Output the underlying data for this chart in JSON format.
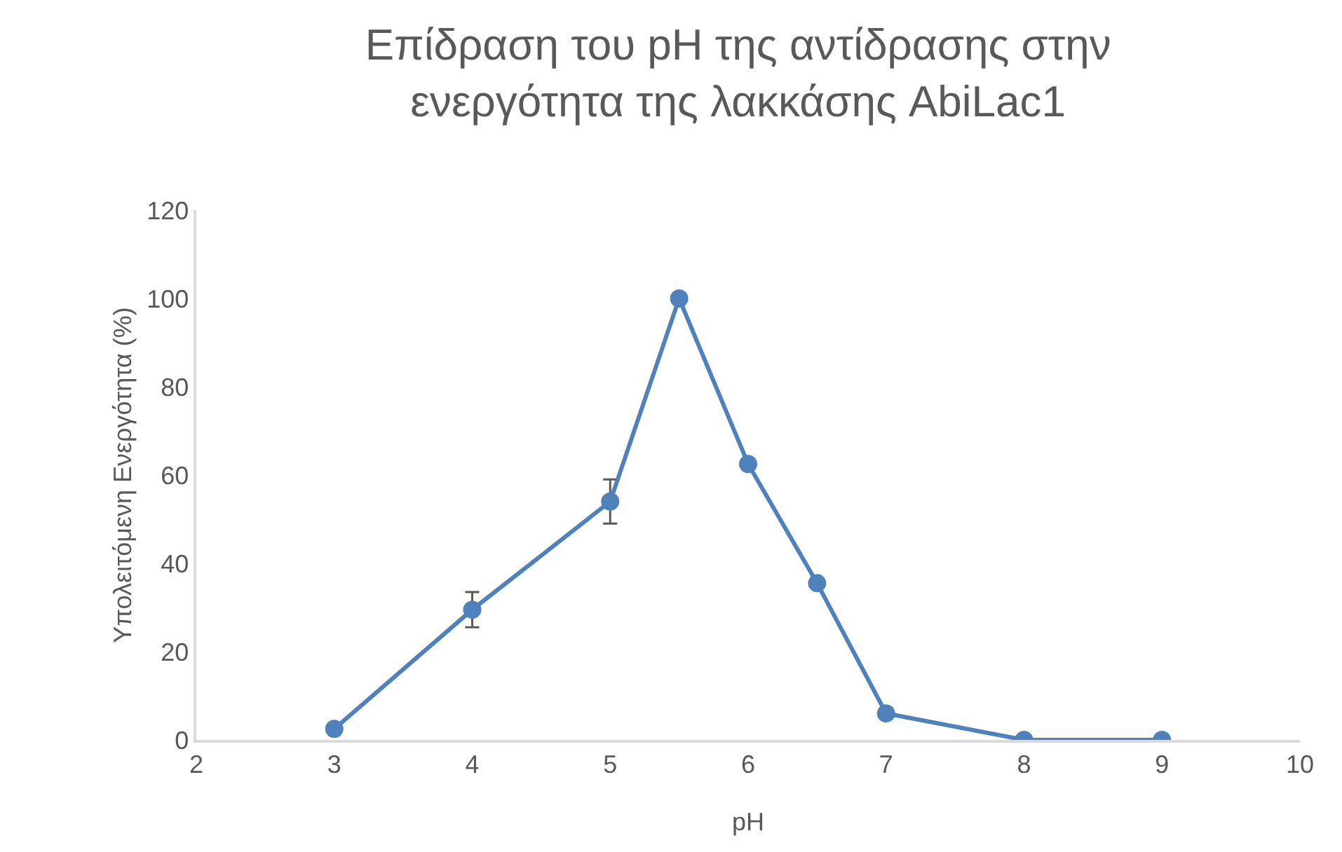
{
  "chart_data": {
    "type": "line",
    "title": "Επίδραση του pH της αντίδρασης στην ενεργότητα της λακκάσης AbiLac1",
    "xlabel": "pH",
    "ylabel": "Υπολειτόμενη Ενεργότητα (%)",
    "x": [
      3,
      4,
      5,
      5.5,
      6,
      6.5,
      7,
      8,
      9
    ],
    "series": [
      {
        "color": "#4f81bd",
        "values": [
          2.5,
          29.5,
          54,
          100,
          62.5,
          35.5,
          6,
          0,
          0
        ],
        "errors": [
          null,
          4,
          5,
          null,
          null,
          null,
          null,
          null,
          null
        ]
      }
    ],
    "xlim": [
      2,
      10
    ],
    "xticks": [
      2,
      3,
      4,
      5,
      6,
      7,
      8,
      9,
      10
    ],
    "ylim": [
      0,
      120
    ],
    "yticks": [
      0,
      20,
      40,
      60,
      80,
      100,
      120
    ],
    "marker": "circle",
    "line_style": "solid"
  }
}
